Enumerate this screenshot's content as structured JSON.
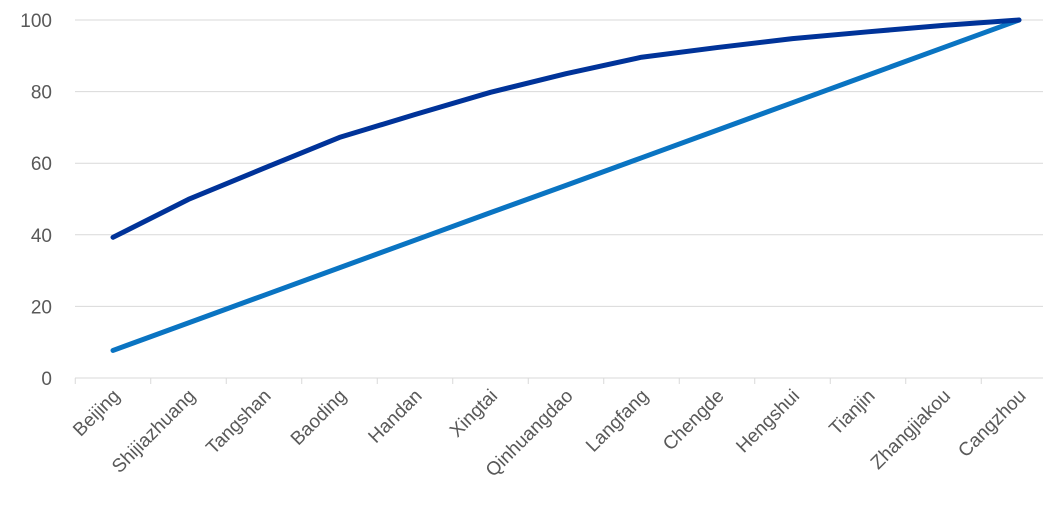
{
  "chart_data": {
    "type": "line",
    "categories": [
      "Beijing",
      "Shijiazhuang",
      "Tangshan",
      "Baoding",
      "Handan",
      "Xingtai",
      "Qinhuangdao",
      "Langfang",
      "Chengde",
      "Hengshui",
      "Tianjin",
      "Zhangjiakou",
      "Cangzhou"
    ],
    "series": [
      {
        "color": "#003399",
        "values": [
          39.3,
          49.9,
          58.6,
          67.2,
          73.6,
          79.8,
          85.0,
          89.6,
          92.3,
          94.8,
          96.7,
          98.5,
          100.0
        ]
      },
      {
        "color": "#0a74c2",
        "values": [
          7.7,
          15.4,
          23.1,
          30.8,
          38.5,
          46.2,
          53.8,
          61.5,
          69.2,
          76.9,
          84.6,
          92.3,
          100.0
        ]
      }
    ],
    "ylim": [
      0,
      100
    ],
    "yticks": [
      0,
      20,
      40,
      60,
      80,
      100
    ],
    "grid": true,
    "legend": "none",
    "title": "",
    "xlabel": "",
    "ylabel": ""
  }
}
